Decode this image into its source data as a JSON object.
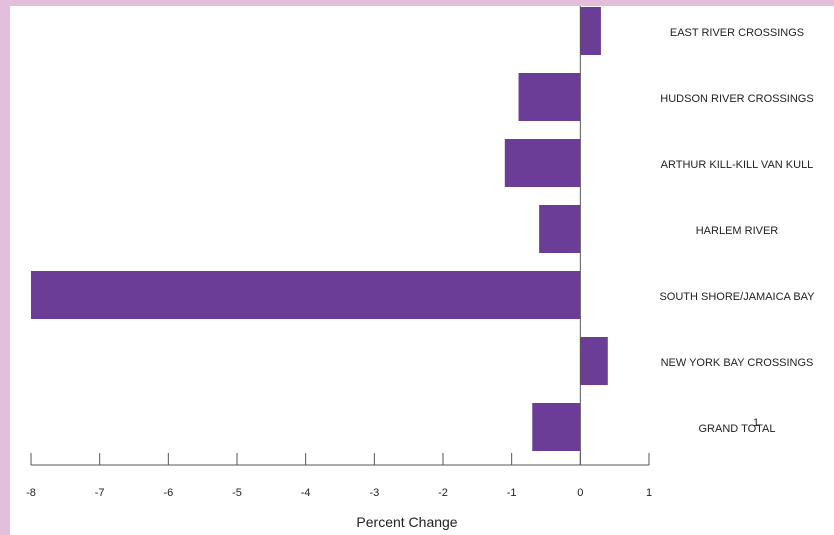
{
  "chart_data": {
    "type": "bar",
    "orientation": "horizontal",
    "title": "",
    "xlabel": "Percent Change",
    "ylabel": "",
    "xlim": [
      -8,
      1
    ],
    "xticks": [
      "-8",
      "-7",
      "-6",
      "-5",
      "-4",
      "-3",
      "-2",
      "-1",
      "0",
      "1"
    ],
    "grid": false,
    "categories": [
      "EAST RIVER CROSSINGS",
      "HUDSON RIVER CROSSINGS",
      "ARTHUR KILL-KILL VAN KULL",
      "HARLEM RIVER",
      "SOUTH SHORE/JAMAICA BAY",
      "NEW YORK BAY CROSSINGS",
      "GRAND TOTAL"
    ],
    "footnote_marker": "1",
    "values": [
      0.3,
      -0.9,
      -1.1,
      -0.6,
      -8.0,
      0.4,
      -0.7
    ],
    "colors": {
      "bar": "#6c3d96",
      "axis": "#555555",
      "frame_border": "#e4bedd"
    }
  }
}
